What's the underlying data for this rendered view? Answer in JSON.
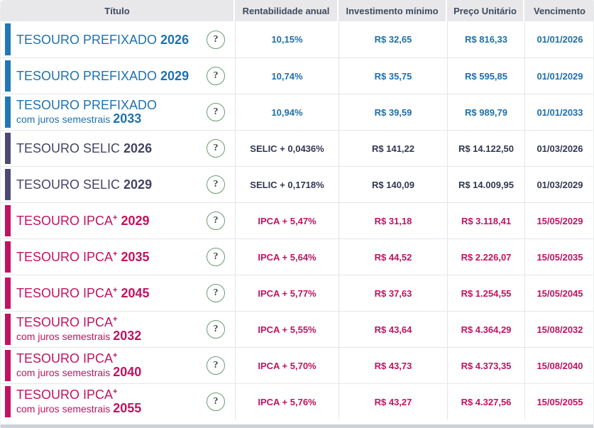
{
  "table": {
    "columns": [
      {
        "key": "titulo",
        "label": "Título"
      },
      {
        "key": "rentabilidade",
        "label": "Rentabilidade anual"
      },
      {
        "key": "investimento",
        "label": "Investimento mínimo"
      },
      {
        "key": "preco",
        "label": "Preço Unitário"
      },
      {
        "key": "vencimento",
        "label": "Vencimento"
      }
    ],
    "help_icon": "?",
    "colors": {
      "prefixado": "#2278b5",
      "selic_bar": "#4d4973",
      "selic_text": "#323850",
      "ipca": "#c2125f",
      "header_bg": "#e8e8ea",
      "header_text": "#3e4a5e",
      "border": "#e4e6ea",
      "help_green": "#6c9b74"
    },
    "rows": [
      {
        "type": "prefixado",
        "name": "TESOURO PREFIXADO",
        "sup": "",
        "sub": "",
        "year": "2026",
        "rate": "10,15%",
        "min_investment": "R$ 32,65",
        "unit_price": "R$ 816,33",
        "maturity": "01/01/2026"
      },
      {
        "type": "prefixado",
        "name": "TESOURO PREFIXADO",
        "sup": "",
        "sub": "",
        "year": "2029",
        "rate": "10,74%",
        "min_investment": "R$ 35,75",
        "unit_price": "R$ 595,85",
        "maturity": "01/01/2029"
      },
      {
        "type": "prefixado",
        "name": "TESOURO PREFIXADO",
        "sup": "",
        "sub": "com juros semestrais",
        "year": "2033",
        "rate": "10,94%",
        "min_investment": "R$ 39,59",
        "unit_price": "R$ 989,79",
        "maturity": "01/01/2033"
      },
      {
        "type": "selic",
        "name": "TESOURO SELIC",
        "sup": "",
        "sub": "",
        "year": "2026",
        "rate": "SELIC + 0,0436%",
        "min_investment": "R$ 141,22",
        "unit_price": "R$ 14.122,50",
        "maturity": "01/03/2026"
      },
      {
        "type": "selic",
        "name": "TESOURO SELIC",
        "sup": "",
        "sub": "",
        "year": "2029",
        "rate": "SELIC + 0,1718%",
        "min_investment": "R$ 140,09",
        "unit_price": "R$ 14.009,95",
        "maturity": "01/03/2029"
      },
      {
        "type": "ipca",
        "name": "TESOURO IPCA",
        "sup": "+",
        "sub": "",
        "year": "2029",
        "rate": "IPCA + 5,47%",
        "min_investment": "R$ 31,18",
        "unit_price": "R$ 3.118,41",
        "maturity": "15/05/2029"
      },
      {
        "type": "ipca",
        "name": "TESOURO IPCA",
        "sup": "+",
        "sub": "",
        "year": "2035",
        "rate": "IPCA + 5,64%",
        "min_investment": "R$ 44,52",
        "unit_price": "R$ 2.226,07",
        "maturity": "15/05/2035"
      },
      {
        "type": "ipca",
        "name": "TESOURO IPCA",
        "sup": "+",
        "sub": "",
        "year": "2045",
        "rate": "IPCA + 5,77%",
        "min_investment": "R$ 37,63",
        "unit_price": "R$ 1.254,55",
        "maturity": "15/05/2045"
      },
      {
        "type": "ipca",
        "name": "TESOURO IPCA",
        "sup": "+",
        "sub": "com juros semestrais",
        "year": "2032",
        "rate": "IPCA + 5,55%",
        "min_investment": "R$ 43,64",
        "unit_price": "R$ 4.364,29",
        "maturity": "15/08/2032"
      },
      {
        "type": "ipca",
        "name": "TESOURO IPCA",
        "sup": "+",
        "sub": "com juros semestrais",
        "year": "2040",
        "rate": "IPCA + 5,70%",
        "min_investment": "R$ 43,73",
        "unit_price": "R$ 4.373,35",
        "maturity": "15/08/2040"
      },
      {
        "type": "ipca",
        "name": "TESOURO IPCA",
        "sup": "+",
        "sub": "com juros semestrais",
        "year": "2055",
        "rate": "IPCA + 5,76%",
        "min_investment": "R$ 43,27",
        "unit_price": "R$ 4.327,56",
        "maturity": "15/05/2055"
      }
    ]
  }
}
